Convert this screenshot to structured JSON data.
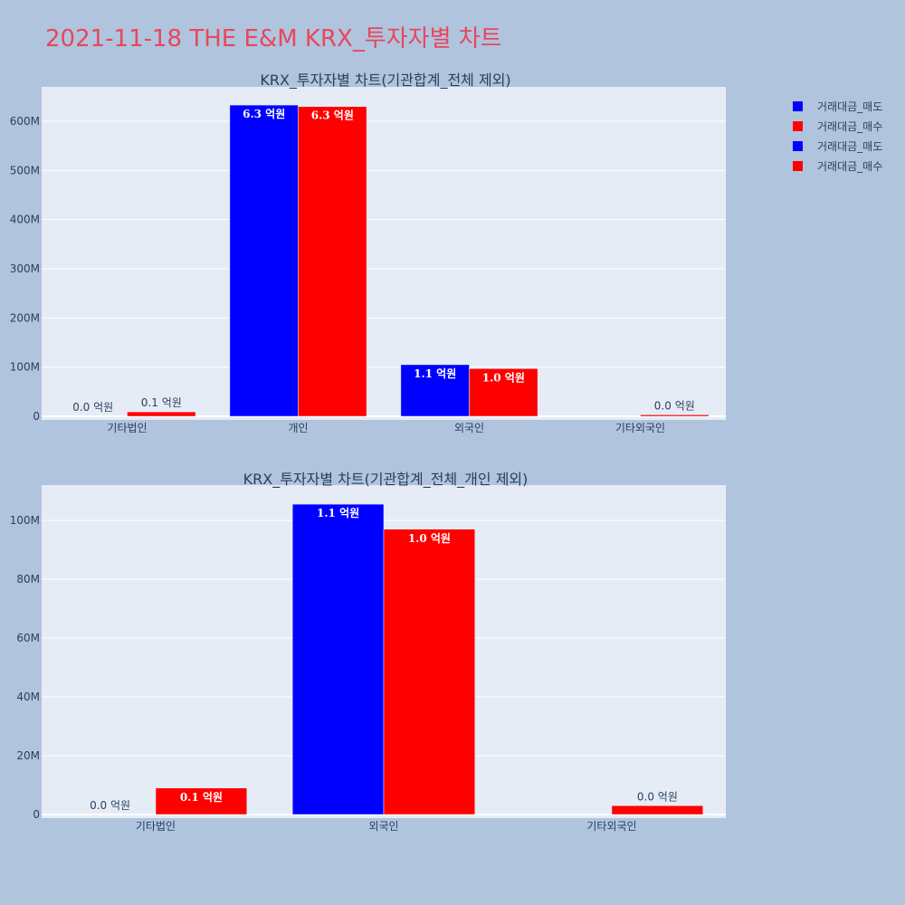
{
  "title": "2021-11-18 THE E&M KRX_투자자별 차트",
  "colors": {
    "sell": "#0000ff",
    "buy": "#ff0000"
  },
  "legend": [
    {
      "name": "거래대금_매도",
      "color": "#0000ff"
    },
    {
      "name": "거래대금_매수",
      "color": "#ff0000"
    },
    {
      "name": "거래대금_매도",
      "color": "#0000ff"
    },
    {
      "name": "거래대금_매수",
      "color": "#ff0000"
    }
  ],
  "chart_data": [
    {
      "type": "bar",
      "title": "KRX_투자자별 차트(기관합계_전체 제외)",
      "categories": [
        "기타법인",
        "개인",
        "외국인",
        "기타외국인"
      ],
      "ylim": [
        0,
        670000000
      ],
      "yticks": [
        0,
        100000000,
        200000000,
        300000000,
        400000000,
        500000000,
        600000000
      ],
      "ytick_labels": [
        "0",
        "100M",
        "200M",
        "300M",
        "400M",
        "500M",
        "600M"
      ],
      "series": [
        {
          "name": "거래대금_매도",
          "values": [
            0,
            633000000,
            105000000,
            0
          ],
          "labels": [
            "0.0 억원",
            "6.3 억원",
            "1.1 억원",
            ""
          ]
        },
        {
          "name": "거래대금_매수",
          "values": [
            9000000,
            630000000,
            97000000,
            3000000
          ],
          "labels": [
            "0.1 억원",
            "6.3 억원",
            "1.0 억원",
            "0.0 억원"
          ]
        }
      ],
      "grid": true
    },
    {
      "type": "bar",
      "title": "KRX_투자자별 차트(기관합계_전체_개인 제외)",
      "categories": [
        "기타법인",
        "외국인",
        "기타외국인"
      ],
      "ylim": [
        0,
        112000000
      ],
      "yticks": [
        0,
        20000000,
        40000000,
        60000000,
        80000000,
        100000000
      ],
      "ytick_labels": [
        "0",
        "20M",
        "40M",
        "60M",
        "80M",
        "100M"
      ],
      "series": [
        {
          "name": "거래대금_매도",
          "values": [
            0,
            105500000,
            0
          ],
          "labels": [
            "0.0 억원",
            "1.1 억원",
            ""
          ]
        },
        {
          "name": "거래대금_매수",
          "values": [
            9000000,
            97000000,
            3000000
          ],
          "labels": [
            "0.1 억원",
            "1.0 억원",
            "0.0 억원"
          ]
        }
      ],
      "grid": true
    }
  ]
}
